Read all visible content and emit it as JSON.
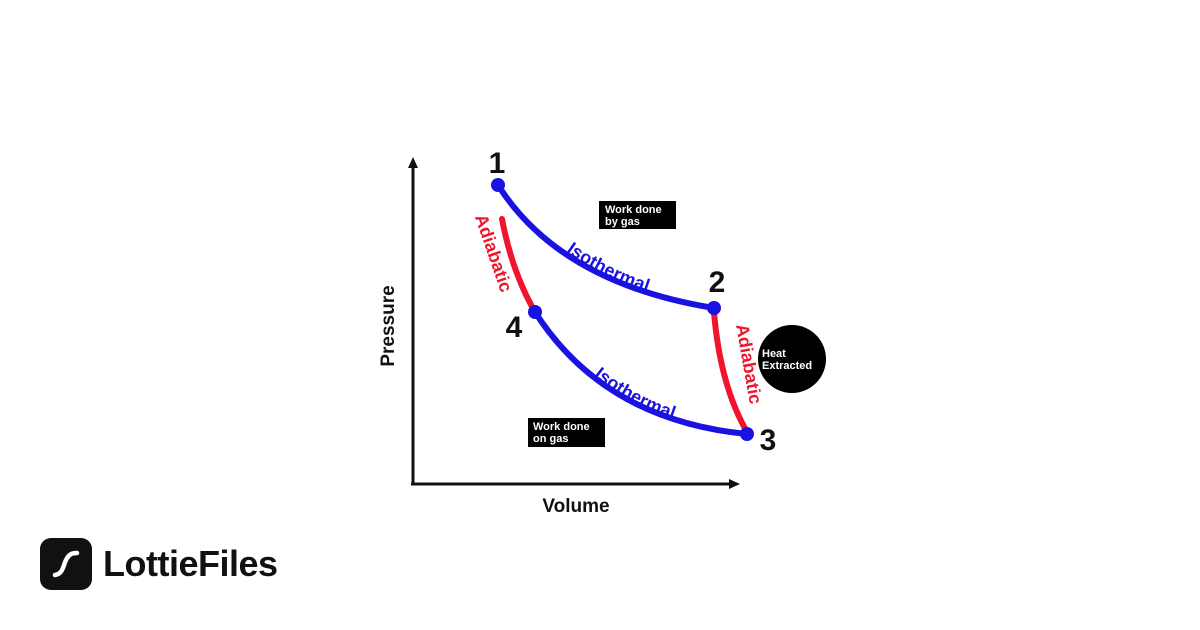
{
  "diagram": {
    "axes": {
      "x_label": "Volume",
      "y_label": "Pressure"
    },
    "points": [
      {
        "id": "p1",
        "label": "1"
      },
      {
        "id": "p2",
        "label": "2"
      },
      {
        "id": "p3",
        "label": "3"
      },
      {
        "id": "p4",
        "label": "4"
      }
    ],
    "curves": {
      "isothermal_top": "Isothermal",
      "isothermal_bottom": "Isothermal",
      "adiabatic_left": "Adiabatic",
      "adiabatic_right": "Adiabatic"
    },
    "annotations": {
      "work_by_gas": [
        "Work done",
        "by gas"
      ],
      "work_on_gas": [
        "Work done",
        "on gas"
      ],
      "heat_extracted": [
        "Heat",
        "Extracted"
      ]
    },
    "colors": {
      "isothermal": "#1a12e0",
      "adiabatic": "#f0142d",
      "point": "#1a12e0",
      "axis": "#111111"
    }
  },
  "brand": {
    "name": "LottieFiles",
    "icon": "lottiefiles-logo-icon"
  }
}
